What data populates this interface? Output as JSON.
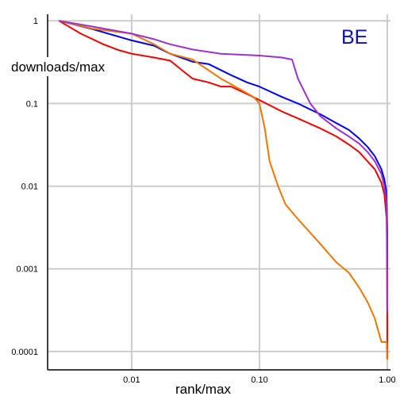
{
  "chart_data": {
    "type": "line",
    "xlabel": "rank/max",
    "ylabel": "downloads/max",
    "annotation": "BE",
    "annotation_color": "#1010b0",
    "x_scale": "log",
    "y_scale": "log",
    "xlim": [
      0.0022,
      1.06
    ],
    "ylim": [
      6e-05,
      1.2
    ],
    "grid": true,
    "x_ticks": [
      {
        "value": 0.01,
        "label": "0.01"
      },
      {
        "value": 0.1,
        "label": "0.10"
      },
      {
        "value": 1,
        "label": "1.00"
      }
    ],
    "y_ticks": [
      {
        "value": 1,
        "label": "1"
      },
      {
        "value": 0.1,
        "label": "0.1"
      },
      {
        "value": 0.01,
        "label": "0.01"
      },
      {
        "value": 0.001,
        "label": "0.001"
      },
      {
        "value": 0.0001,
        "label": "0.0001"
      }
    ],
    "series": [
      {
        "color": "#0000ee",
        "x": [
          0.0027,
          0.005,
          0.01,
          0.015,
          0.02,
          0.03,
          0.04,
          0.06,
          0.08,
          0.1,
          0.15,
          0.2,
          0.3,
          0.4,
          0.5,
          0.6,
          0.7,
          0.8,
          0.9,
          0.95,
          0.98,
          0.99,
          1.0,
          1.0
        ],
        "y": [
          1,
          0.79,
          0.58,
          0.5,
          0.4,
          0.32,
          0.3,
          0.22,
          0.18,
          0.16,
          0.12,
          0.1,
          0.074,
          0.058,
          0.048,
          0.038,
          0.03,
          0.023,
          0.016,
          0.012,
          0.009,
          0.006,
          0.003,
          0.001
        ]
      },
      {
        "color": "#ee0000",
        "x": [
          0.0027,
          0.004,
          0.006,
          0.008,
          0.01,
          0.015,
          0.02,
          0.025,
          0.03,
          0.04,
          0.05,
          0.06,
          0.08,
          0.1,
          0.15,
          0.2,
          0.3,
          0.4,
          0.5,
          0.6,
          0.7,
          0.8,
          0.9,
          0.95,
          0.99,
          1.0,
          1.0
        ],
        "y": [
          1,
          0.7,
          0.52,
          0.44,
          0.4,
          0.36,
          0.33,
          0.25,
          0.2,
          0.18,
          0.16,
          0.16,
          0.13,
          0.11,
          0.08,
          0.066,
          0.05,
          0.04,
          0.032,
          0.026,
          0.02,
          0.016,
          0.011,
          0.008,
          0.004,
          0.001,
          8e-05
        ]
      },
      {
        "color": "#ee7700",
        "x": [
          0.0027,
          0.005,
          0.01,
          0.015,
          0.02,
          0.03,
          0.05,
          0.07,
          0.09,
          0.1,
          0.11,
          0.12,
          0.14,
          0.16,
          0.2,
          0.3,
          0.4,
          0.5,
          0.6,
          0.7,
          0.8,
          0.9,
          0.99,
          1.0
        ],
        "y": [
          1,
          0.8,
          0.7,
          0.52,
          0.4,
          0.34,
          0.2,
          0.15,
          0.12,
          0.1,
          0.05,
          0.02,
          0.01,
          0.006,
          0.004,
          0.002,
          0.0012,
          0.0009,
          0.0006,
          0.0004,
          0.00025,
          0.00013,
          0.00013,
          8e-05
        ]
      },
      {
        "color": "#9933cc",
        "x": [
          0.0027,
          0.005,
          0.01,
          0.015,
          0.02,
          0.03,
          0.05,
          0.1,
          0.15,
          0.18,
          0.2,
          0.25,
          0.3,
          0.4,
          0.5,
          0.6,
          0.7,
          0.8,
          0.9,
          0.95,
          0.99,
          1.0
        ],
        "y": [
          1,
          0.85,
          0.7,
          0.6,
          0.52,
          0.45,
          0.4,
          0.38,
          0.36,
          0.34,
          0.2,
          0.1,
          0.07,
          0.05,
          0.04,
          0.033,
          0.026,
          0.02,
          0.014,
          0.01,
          0.006,
          0.0003
        ]
      }
    ]
  }
}
